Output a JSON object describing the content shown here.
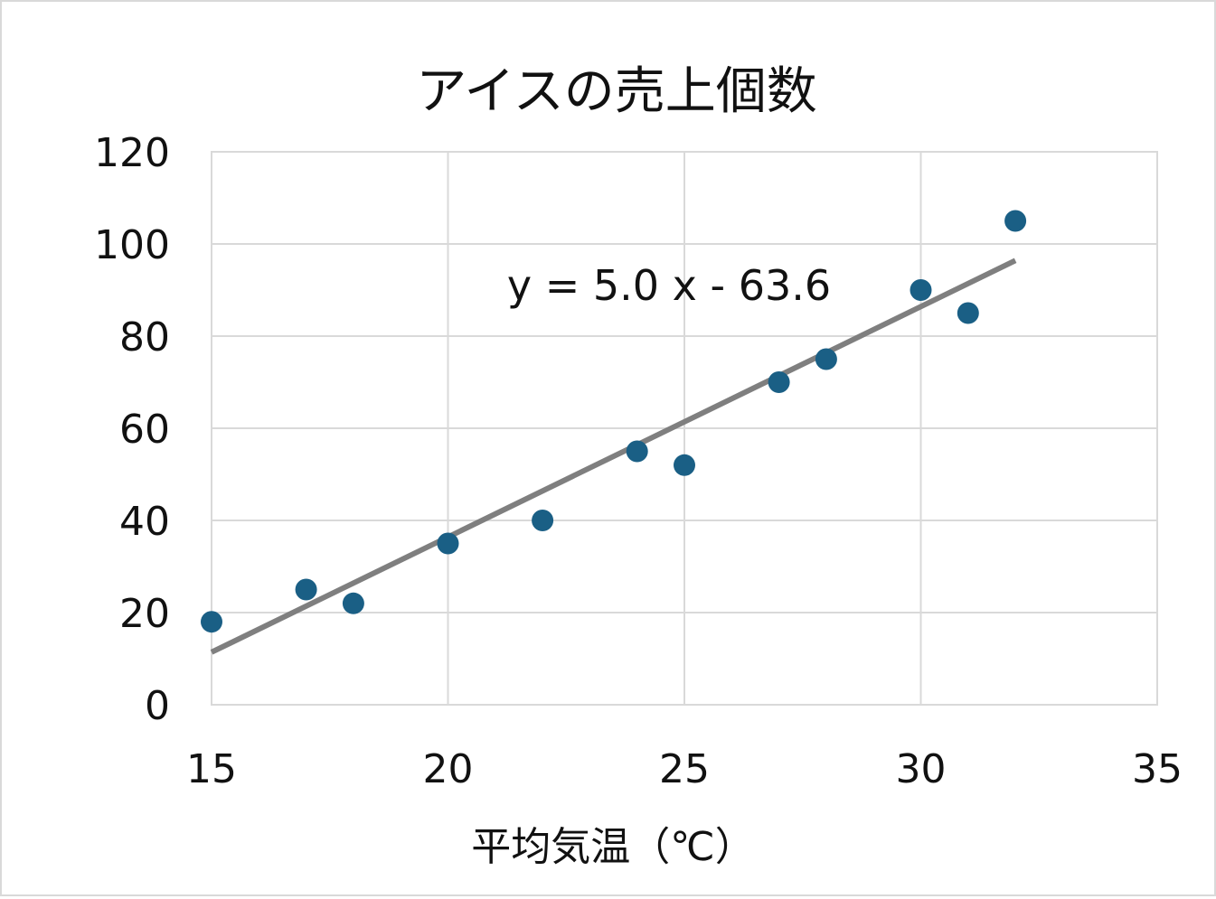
{
  "chart_data": {
    "type": "scatter",
    "title": "アイスの売上個数",
    "xlabel": "平均気温（℃）",
    "ylabel": "",
    "xlim": [
      15,
      35
    ],
    "ylim": [
      0,
      120
    ],
    "x_ticks": [
      "15",
      "20",
      "25",
      "30",
      "35"
    ],
    "y_ticks": [
      "0",
      "20",
      "40",
      "60",
      "80",
      "100",
      "120"
    ],
    "grid": true,
    "legend": "none",
    "series": [
      {
        "x": [
          15,
          17,
          18,
          20,
          22,
          24,
          25,
          27,
          28,
          30,
          31,
          32
        ],
        "y": [
          18,
          25,
          22,
          35,
          40,
          55,
          52,
          70,
          75,
          90,
          85,
          105
        ]
      }
    ],
    "trendline": {
      "equation": "y = 5.0 x - 63.6",
      "slope": 5.0,
      "intercept": -63.6,
      "x_range": [
        15,
        32
      ]
    },
    "colors": {
      "marker": "#1a5f85",
      "trendline": "#7f7f7f",
      "grid": "#d9d9d9",
      "border": "#d9d9d9"
    }
  }
}
